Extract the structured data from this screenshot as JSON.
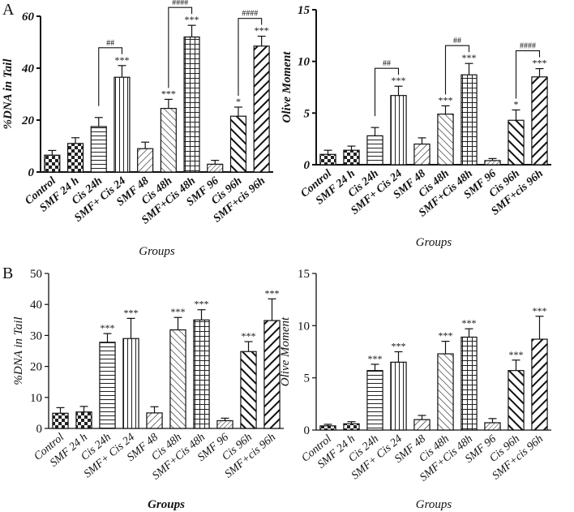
{
  "figure": {
    "panel_labels": [
      "A",
      "B"
    ]
  },
  "patterns": [
    "checker",
    "checker",
    "hline",
    "vline",
    "diag-up",
    "diag-down",
    "grid",
    "diag-up-fine",
    "diag-down-bold",
    "diag-up-bold"
  ],
  "chart_data": [
    {
      "id": "A-dna",
      "type": "bar",
      "panel": "A",
      "categories": [
        "Control",
        "SMF 24 h",
        "Cis 24h",
        "SMF+ Cis 24",
        "SMF 48",
        "Cis 48h",
        "SMF+Cis 48h",
        "SMF 96",
        "Cis 96h",
        "SMF+cis 96h"
      ],
      "values": [
        6.5,
        11,
        17.5,
        36.5,
        9,
        24.5,
        52,
        3,
        21.5,
        48.5
      ],
      "errors": [
        1.8,
        2.2,
        3.5,
        4.5,
        2.5,
        3.5,
        4.5,
        1.5,
        3.5,
        3.8
      ],
      "stars": [
        "",
        "",
        "",
        "***",
        "",
        "***",
        "***",
        "",
        "*",
        "***"
      ],
      "brackets": [
        {
          "from": 2,
          "to": 3,
          "label": "##"
        },
        {
          "from": 5,
          "to": 6,
          "label": "####"
        },
        {
          "from": 8,
          "to": 9,
          "label": "####"
        }
      ],
      "ylabel": "%DNA in Tail",
      "xlabel": "Groups",
      "ylim": [
        0,
        60
      ],
      "yticks": [
        "0",
        "20",
        "40",
        "60"
      ],
      "style": "bold"
    },
    {
      "id": "A-olive",
      "type": "bar",
      "panel": "A",
      "categories": [
        "Control",
        "SMF 24 h",
        "Cis 24h",
        "SMF+ Cis 24",
        "SMF 48",
        "Cis 48h",
        "SMF+Cis 48h",
        "SMF 96",
        "Cis 96h",
        "SMF+cis 96h"
      ],
      "values": [
        1.0,
        1.4,
        2.8,
        6.7,
        2.0,
        4.9,
        8.7,
        0.4,
        4.3,
        8.5
      ],
      "errors": [
        0.4,
        0.4,
        0.8,
        0.9,
        0.6,
        0.8,
        1.1,
        0.2,
        1.0,
        0.8
      ],
      "stars": [
        "",
        "",
        "",
        "***",
        "",
        "***",
        "***",
        "",
        "*",
        "***"
      ],
      "brackets": [
        {
          "from": 2,
          "to": 3,
          "label": "##"
        },
        {
          "from": 5,
          "to": 6,
          "label": "##"
        },
        {
          "from": 8,
          "to": 9,
          "label": "####"
        }
      ],
      "ylabel": "Olive Moment",
      "xlabel": "Groups",
      "ylim": [
        0,
        15
      ],
      "yticks": [
        "0",
        "5",
        "10",
        "15"
      ],
      "style": "bold"
    },
    {
      "id": "B-dna",
      "type": "bar",
      "panel": "B",
      "categories": [
        "Control",
        "SMF 24 h",
        "Cis 24h",
        "SMF+ Cis 24",
        "SMF 48",
        "Cis 48h",
        "SMF+Cis 48h",
        "SMF 96",
        "Cis 96h",
        "SMF+cis 96h"
      ],
      "values": [
        4.9,
        5.3,
        27.8,
        29,
        5.0,
        31.8,
        35,
        2.5,
        24.8,
        34.8
      ],
      "errors": [
        1.8,
        1.8,
        2.8,
        6.5,
        2.0,
        4.0,
        3.3,
        0.8,
        3.2,
        7.0
      ],
      "stars": [
        "",
        "",
        "***",
        "***",
        "",
        "***",
        "***",
        "",
        "***",
        "***"
      ],
      "brackets": [],
      "ylabel": "%DNA in Tail",
      "xlabel": "Groups",
      "ylim": [
        0,
        50
      ],
      "yticks": [
        "0",
        "10",
        "20",
        "30",
        "40",
        "50"
      ],
      "style": "plain"
    },
    {
      "id": "B-olive",
      "type": "bar",
      "panel": "B",
      "categories": [
        "Control",
        "SMF 24 h",
        "Cis 24h",
        "SMF+ Cis 24",
        "SMF 48",
        "Cis 48h",
        "SMF+Cis 48h",
        "SMF 96",
        "Cis 96h",
        "SMF+cis 96h"
      ],
      "values": [
        0.4,
        0.6,
        5.7,
        6.5,
        1.0,
        7.3,
        8.9,
        0.7,
        5.7,
        8.7
      ],
      "errors": [
        0.15,
        0.2,
        0.6,
        1.0,
        0.4,
        1.2,
        0.8,
        0.4,
        1.0,
        2.2
      ],
      "stars": [
        "",
        "",
        "***",
        "***",
        "",
        "***",
        "***",
        "",
        "***",
        "***"
      ],
      "brackets": [],
      "ylabel": "Olive Moment",
      "xlabel": "Groups",
      "ylim": [
        0,
        15
      ],
      "yticks": [
        "0",
        "5",
        "10",
        "15"
      ],
      "style": "plain"
    }
  ]
}
